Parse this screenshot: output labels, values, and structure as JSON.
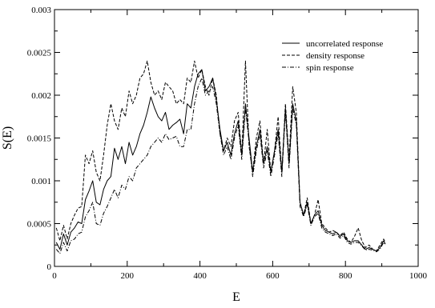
{
  "chart_data": {
    "type": "line",
    "title": "",
    "xlabel": "E",
    "ylabel": "S(E)",
    "xlim": [
      0,
      1000
    ],
    "ylim": [
      0,
      0.003
    ],
    "xticks": [
      0,
      200,
      400,
      600,
      800,
      1000
    ],
    "xtick_labels": [
      "0",
      "200",
      "400",
      "600",
      "800",
      "1000"
    ],
    "yticks": [
      0,
      0.0005,
      0.001,
      0.0015,
      0.002,
      0.0025,
      0.003
    ],
    "ytick_labels": [
      "0",
      "0.0005",
      "0.001",
      "0.0015",
      "0.002",
      "0.0025",
      "0.003"
    ],
    "grid": false,
    "legend_position": "top-right",
    "series": [
      {
        "name": "uncorrelated response",
        "dash": "solid",
        "x": [
          5,
          15,
          25,
          35,
          45,
          55,
          65,
          75,
          85,
          95,
          105,
          115,
          125,
          135,
          145,
          155,
          165,
          175,
          185,
          195,
          205,
          215,
          225,
          235,
          245,
          255,
          265,
          275,
          285,
          295,
          305,
          315,
          325,
          335,
          345,
          355,
          365,
          375,
          385,
          395,
          405,
          415,
          425,
          435,
          445,
          455,
          465,
          475,
          485,
          495,
          505,
          515,
          525,
          535,
          545,
          555,
          565,
          575,
          585,
          595,
          605,
          615,
          625,
          635,
          645,
          655,
          665,
          675,
          685,
          695,
          705,
          715,
          725,
          735,
          745,
          755,
          765,
          775,
          785,
          795,
          805,
          815,
          825,
          835,
          845,
          855,
          865,
          875,
          885,
          895,
          905,
          910
        ],
        "y": [
          0.00028,
          0.0002,
          0.00038,
          0.00025,
          0.0004,
          0.00045,
          0.00052,
          0.0005,
          0.00078,
          0.00088,
          0.001,
          0.00075,
          0.00072,
          0.0009,
          0.001,
          0.00105,
          0.00138,
          0.00125,
          0.0014,
          0.0012,
          0.00145,
          0.0013,
          0.0014,
          0.00155,
          0.00165,
          0.0018,
          0.00198,
          0.00185,
          0.00175,
          0.0017,
          0.0018,
          0.0016,
          0.00165,
          0.00168,
          0.00172,
          0.00155,
          0.0019,
          0.00185,
          0.0021,
          0.00225,
          0.0023,
          0.00205,
          0.0021,
          0.0022,
          0.00195,
          0.0016,
          0.00135,
          0.00145,
          0.0013,
          0.00155,
          0.0017,
          0.0013,
          0.0019,
          0.0015,
          0.0011,
          0.0014,
          0.0016,
          0.0012,
          0.0014,
          0.0011,
          0.00135,
          0.0016,
          0.0011,
          0.00185,
          0.0012,
          0.0019,
          0.0017,
          0.00075,
          0.0006,
          0.00075,
          0.0005,
          0.0006,
          0.00065,
          0.00048,
          0.00042,
          0.0004,
          0.00038,
          0.0004,
          0.00035,
          0.00038,
          0.0003,
          0.00028,
          0.0003,
          0.0003,
          0.00025,
          0.0002,
          0.00022,
          0.0002,
          0.00018,
          0.00022,
          0.0003,
          0.00026
        ]
      },
      {
        "name": "density response",
        "dash": "dashed",
        "x": [
          5,
          15,
          25,
          35,
          45,
          55,
          65,
          75,
          85,
          95,
          105,
          115,
          125,
          135,
          145,
          155,
          165,
          175,
          185,
          195,
          205,
          215,
          225,
          235,
          245,
          255,
          265,
          275,
          285,
          295,
          305,
          315,
          325,
          335,
          345,
          355,
          365,
          375,
          385,
          395,
          405,
          415,
          425,
          435,
          445,
          455,
          465,
          475,
          485,
          495,
          505,
          515,
          525,
          535,
          545,
          555,
          565,
          575,
          585,
          595,
          605,
          615,
          625,
          635,
          645,
          655,
          665,
          675,
          685,
          695,
          705,
          715,
          725,
          735,
          745,
          755,
          765,
          775,
          785,
          795,
          805,
          815,
          825,
          835,
          845,
          855,
          865,
          875,
          885,
          895,
          905,
          910
        ],
        "y": [
          0.00045,
          0.0003,
          0.00048,
          0.00032,
          0.0005,
          0.0006,
          0.00068,
          0.0007,
          0.0013,
          0.0012,
          0.00135,
          0.0011,
          0.001,
          0.0013,
          0.00165,
          0.0019,
          0.0017,
          0.0016,
          0.00185,
          0.00175,
          0.00205,
          0.0019,
          0.002,
          0.0022,
          0.00225,
          0.0024,
          0.00215,
          0.002,
          0.00205,
          0.00195,
          0.00215,
          0.0021,
          0.00205,
          0.0019,
          0.00195,
          0.0019,
          0.0022,
          0.00215,
          0.0024,
          0.0022,
          0.0023,
          0.0021,
          0.002,
          0.0022,
          0.002,
          0.00155,
          0.00135,
          0.0015,
          0.0014,
          0.0017,
          0.0018,
          0.0013,
          0.0024,
          0.0014,
          0.0011,
          0.0015,
          0.0017,
          0.0012,
          0.0016,
          0.0011,
          0.00135,
          0.00175,
          0.0011,
          0.0019,
          0.00125,
          0.0021,
          0.0018,
          0.00075,
          0.0006,
          0.0008,
          0.0005,
          0.0006,
          0.00078,
          0.0005,
          0.00045,
          0.0004,
          0.00042,
          0.0004,
          0.00036,
          0.0004,
          0.00032,
          0.00028,
          0.00035,
          0.00045,
          0.0003,
          0.00022,
          0.00025,
          0.0002,
          0.00018,
          0.00025,
          0.00032,
          0.00028
        ]
      },
      {
        "name": "spin response",
        "dash": "dashdot",
        "x": [
          5,
          15,
          25,
          35,
          45,
          55,
          65,
          75,
          85,
          95,
          105,
          115,
          125,
          135,
          145,
          155,
          165,
          175,
          185,
          195,
          205,
          215,
          225,
          235,
          245,
          255,
          265,
          275,
          285,
          295,
          305,
          315,
          325,
          335,
          345,
          355,
          365,
          375,
          385,
          395,
          405,
          415,
          425,
          435,
          445,
          455,
          465,
          475,
          485,
          495,
          505,
          515,
          525,
          535,
          545,
          555,
          565,
          575,
          585,
          595,
          605,
          615,
          625,
          635,
          645,
          655,
          665,
          675,
          685,
          695,
          705,
          715,
          725,
          735,
          745,
          755,
          765,
          775,
          785,
          795,
          805,
          815,
          825,
          835,
          845,
          855,
          865,
          875,
          885,
          895,
          905,
          910
        ],
        "y": [
          0.0002,
          0.00015,
          0.00028,
          0.00018,
          0.0003,
          0.00032,
          0.00038,
          0.0004,
          0.00058,
          0.00065,
          0.00075,
          0.0005,
          0.00048,
          0.00062,
          0.0007,
          0.0008,
          0.0009,
          0.0008,
          0.00095,
          0.0009,
          0.00105,
          0.001,
          0.00115,
          0.0012,
          0.00125,
          0.0013,
          0.0014,
          0.00145,
          0.0015,
          0.00145,
          0.00155,
          0.00148,
          0.0015,
          0.00152,
          0.0014,
          0.0014,
          0.0016,
          0.0016,
          0.0019,
          0.0021,
          0.0022,
          0.002,
          0.00205,
          0.0021,
          0.0019,
          0.00155,
          0.0013,
          0.0014,
          0.00125,
          0.0015,
          0.00165,
          0.00125,
          0.00185,
          0.00145,
          0.00105,
          0.00135,
          0.00155,
          0.00115,
          0.00135,
          0.00105,
          0.0013,
          0.00155,
          0.00105,
          0.0018,
          0.00115,
          0.00185,
          0.00165,
          0.0007,
          0.00058,
          0.00072,
          0.00048,
          0.00058,
          0.00062,
          0.00045,
          0.0004,
          0.00038,
          0.00036,
          0.00038,
          0.00033,
          0.00036,
          0.00028,
          0.00026,
          0.00028,
          0.00028,
          0.00024,
          0.00019,
          0.0002,
          0.00019,
          0.00017,
          0.0002,
          0.00028,
          0.00025
        ]
      }
    ]
  }
}
